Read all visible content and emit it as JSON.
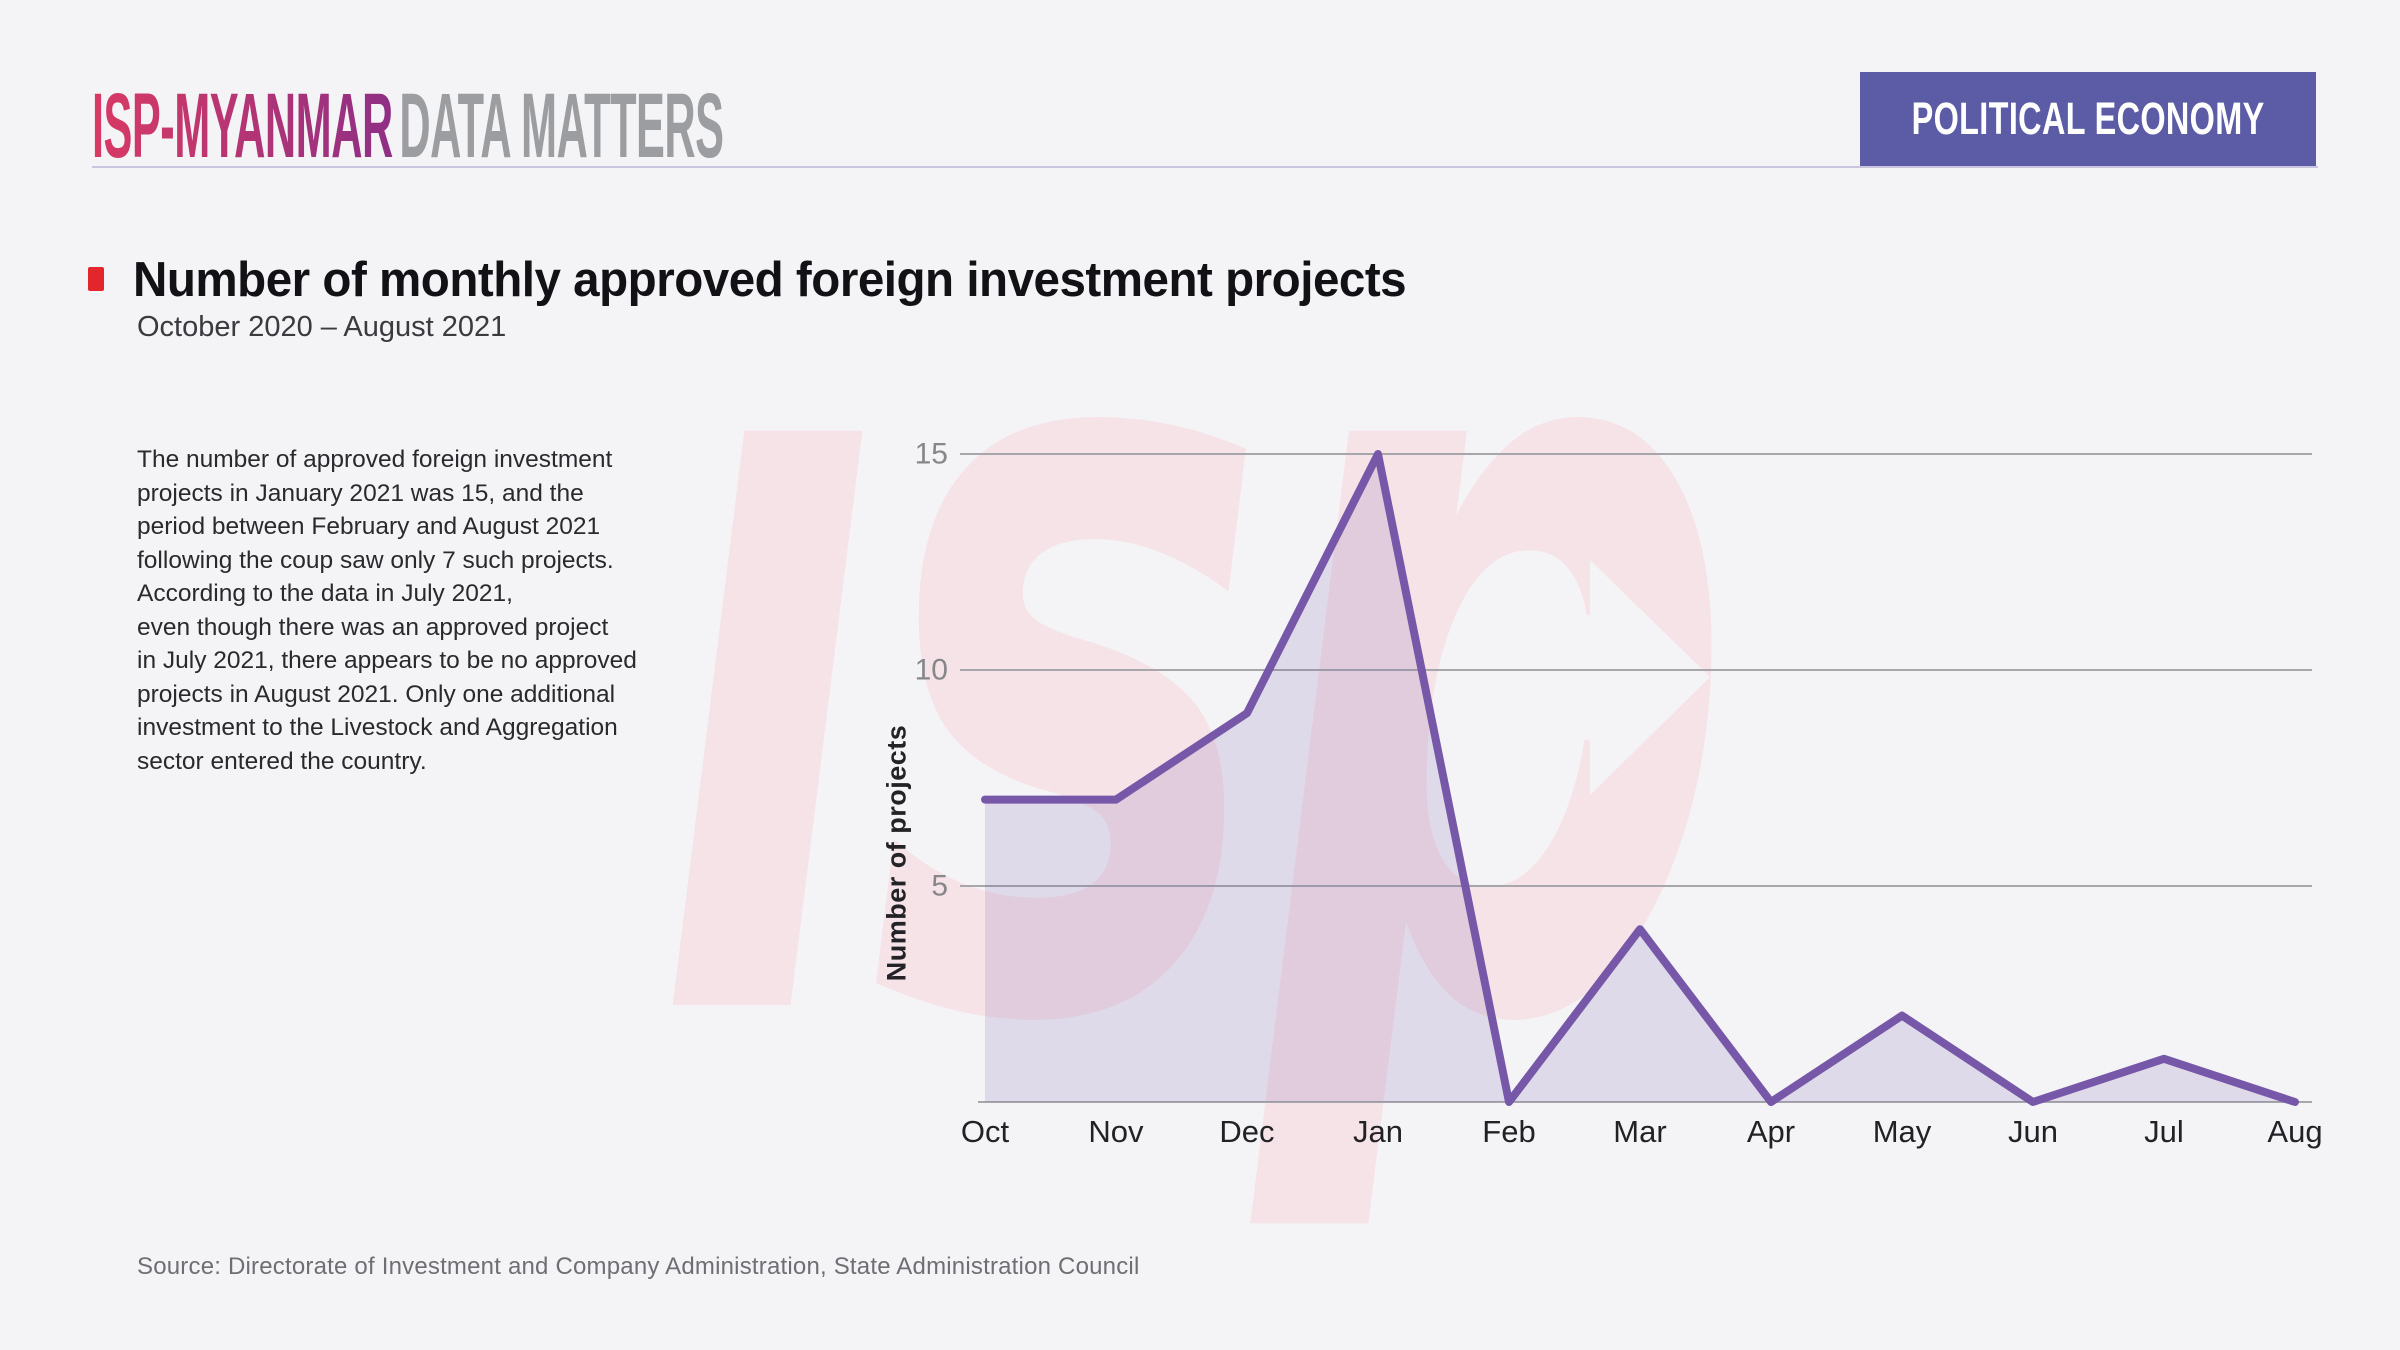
{
  "header": {
    "brand_primary": "ISP-MYANMAR",
    "brand_secondary": "DATA MATTERS",
    "badge_label": "POLITICAL ECONOMY"
  },
  "title_block": {
    "title": "Number of monthly approved foreign investment projects",
    "subtitle": "October 2020 – August 2021"
  },
  "commentary": "The number of approved foreign investment\nprojects in January 2021 was 15, and the\nperiod between February and August 2021\nfollowing the coup saw only 7 such projects.\nAccording to the data in July 2021,\neven though there was an approved project\nin July 2021, there appears to be no approved\nprojects in August 2021. Only one additional\ninvestment to the Livestock and Aggregation\nsector entered the country.",
  "source_note": "Source: Directorate of Investment and Company Administration, State Administration Council",
  "watermark_text": "isp",
  "colors": {
    "accent_red": "#e2262b",
    "brand_gradient_start": "#d93a63",
    "brand_gradient_end": "#8f2f85",
    "badge_bg": "#5c5ca6",
    "line_purple": "#7758a8",
    "area_fill": "rgba(117,87,166,0.16)",
    "watermark_pink": "#f6e3e8",
    "gridline_gray": "#a7a7ab",
    "background": "#f4f4f6"
  },
  "chart_data": {
    "type": "area",
    "title": "Number of monthly approved foreign investment projects",
    "subtitle": "October 2020 – August 2021",
    "categories": [
      "Oct",
      "Nov",
      "Dec",
      "Jan",
      "Feb",
      "Mar",
      "Apr",
      "May",
      "Jun",
      "Jul",
      "Aug"
    ],
    "values": [
      7,
      7,
      9,
      15,
      0,
      4,
      0,
      2,
      0,
      1,
      0
    ],
    "xlabel": "",
    "ylabel": "Number of projects",
    "yticks": [
      5,
      10,
      15
    ],
    "ylim": [
      0,
      15
    ],
    "grid": true,
    "legend": "none",
    "line_color": "#7758a8",
    "fill_color": "rgba(117,87,166,0.16)"
  }
}
